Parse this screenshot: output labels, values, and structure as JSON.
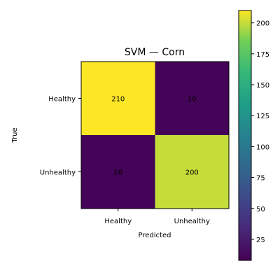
{
  "chart_data": {
    "type": "heatmap",
    "title": "SVM — Corn",
    "xlabel": "Predicted",
    "ylabel": "True",
    "x_categories": [
      "Healthy",
      "Unhealthy"
    ],
    "y_categories": [
      "Healthy",
      "Unhealthy"
    ],
    "values": [
      [
        210,
        10
      ],
      [
        10,
        200
      ]
    ],
    "colormap": "viridis",
    "colorbar": {
      "range": [
        8,
        210
      ],
      "ticks": [
        25,
        50,
        75,
        100,
        125,
        150,
        175,
        200
      ]
    }
  }
}
